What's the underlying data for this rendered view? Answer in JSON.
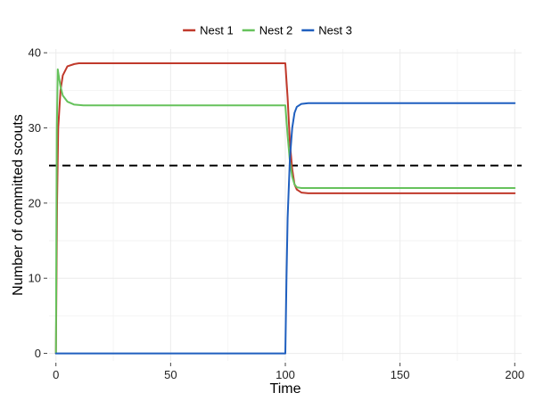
{
  "chart_data": {
    "type": "line",
    "title": "",
    "xlabel": "Time",
    "ylabel": "Number of committed scouts",
    "xlim": [
      -3,
      203
    ],
    "ylim": [
      -1,
      40.5
    ],
    "xticks": [
      0,
      50,
      100,
      150,
      200
    ],
    "yticks": [
      0,
      10,
      20,
      30,
      40
    ],
    "grid": true,
    "legend_position": "top",
    "threshold": {
      "y": 25,
      "style": "dashed",
      "color": "#000000"
    },
    "series": [
      {
        "name": "Nest 1",
        "color": "#c0392b",
        "x": [
          0,
          0.5,
          1,
          2,
          3,
          5,
          8,
          10,
          20,
          50,
          99.9,
          100,
          101,
          102,
          103,
          104,
          105,
          107,
          110,
          120,
          150,
          200
        ],
        "y": [
          0,
          20,
          30,
          35,
          37,
          38.2,
          38.5,
          38.6,
          38.6,
          38.6,
          38.6,
          38.6,
          34,
          28,
          24.5,
          22.5,
          21.8,
          21.4,
          21.3,
          21.3,
          21.3,
          21.3
        ]
      },
      {
        "name": "Nest 2",
        "color": "#66c25c",
        "x": [
          0,
          0.4,
          0.8,
          1.2,
          2,
          3,
          5,
          8,
          12,
          20,
          50,
          99.9,
          100,
          101,
          102,
          103,
          104,
          105,
          107,
          110,
          120,
          150,
          200
        ],
        "y": [
          0,
          30,
          37.8,
          37,
          35.5,
          34.3,
          33.5,
          33.1,
          33,
          33,
          33,
          33,
          33,
          29,
          25.5,
          23.5,
          22.5,
          22.1,
          22,
          22,
          22,
          22,
          22
        ]
      },
      {
        "name": "Nest 3",
        "color": "#1f5fbf",
        "x": [
          0,
          50,
          99.9,
          100,
          100.5,
          101,
          102,
          103,
          104,
          105,
          107,
          110,
          120,
          150,
          200
        ],
        "y": [
          0,
          0,
          0,
          0,
          10,
          18,
          26,
          30,
          32,
          32.8,
          33.2,
          33.3,
          33.3,
          33.3,
          33.3
        ]
      }
    ]
  }
}
